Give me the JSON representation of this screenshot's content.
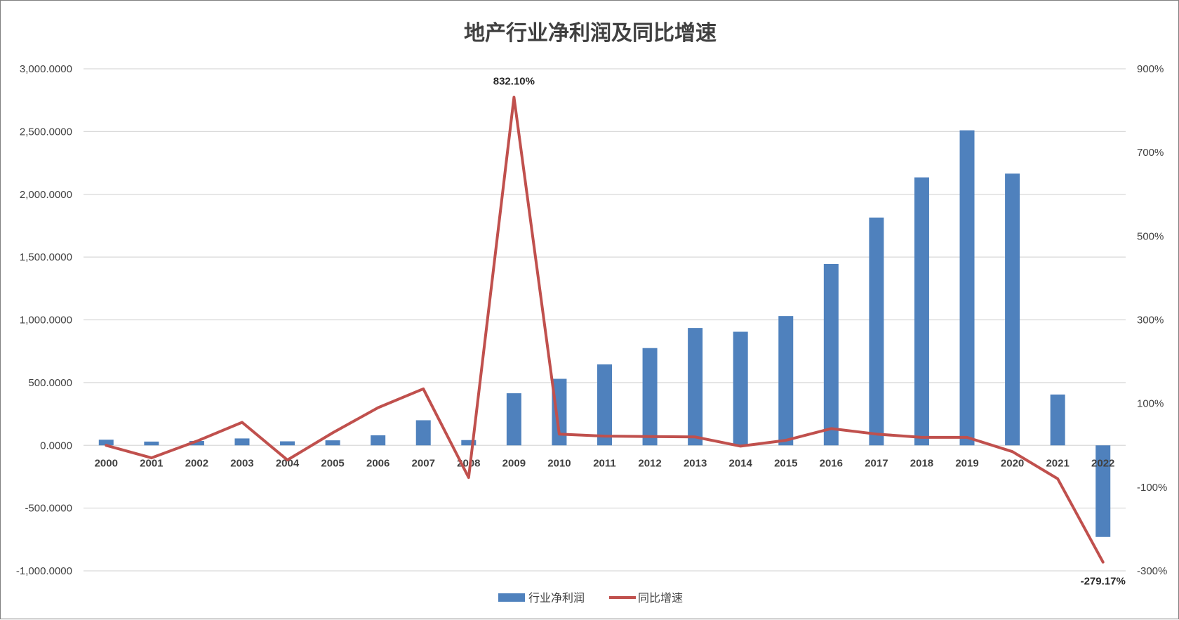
{
  "chart_data": {
    "type": "bar",
    "title": "地产行业净利润及同比增速",
    "categories": [
      "2000",
      "2001",
      "2002",
      "2003",
      "2004",
      "2005",
      "2006",
      "2007",
      "2008",
      "2009",
      "2010",
      "2011",
      "2012",
      "2013",
      "2014",
      "2015",
      "2016",
      "2017",
      "2018",
      "2019",
      "2020",
      "2021",
      "2022"
    ],
    "series": [
      {
        "name": "行业净利润",
        "type": "bar",
        "axis": "left",
        "color": "#4f81bd",
        "values": [
          45,
          30,
          35,
          55,
          32,
          40,
          80,
          200,
          42,
          415,
          530,
          645,
          775,
          935,
          905,
          1030,
          1445,
          1815,
          2135,
          2510,
          2165,
          405,
          -730
        ]
      },
      {
        "name": "同比增速",
        "type": "line",
        "axis": "right",
        "color": "#c0504d",
        "values": [
          0,
          -30,
          10,
          55,
          -35,
          30,
          90,
          135,
          -77,
          832.1,
          27,
          22,
          21,
          20,
          -2,
          12,
          40,
          27,
          19,
          19,
          -15,
          -80,
          -279.17
        ]
      }
    ],
    "y_left": {
      "min": -1000,
      "max": 3000,
      "ticks": [
        "3,000.0000",
        "2,500.0000",
        "2,000.0000",
        "1,500.0000",
        "1,000.0000",
        "500.0000",
        "0.0000",
        "-500.0000",
        "-1,000.0000"
      ]
    },
    "y_right": {
      "min": -300,
      "max": 900,
      "unit": "%",
      "ticks": [
        "900%",
        "700%",
        "500%",
        "300%",
        "100%",
        "-100%",
        "-300%"
      ]
    },
    "annotations": [
      {
        "category": "2009",
        "series": "同比增速",
        "label": "832.10%"
      },
      {
        "category": "2022",
        "series": "同比增速",
        "label": "-279.17%"
      }
    ],
    "grid": true,
    "legend": "bottom-center"
  }
}
